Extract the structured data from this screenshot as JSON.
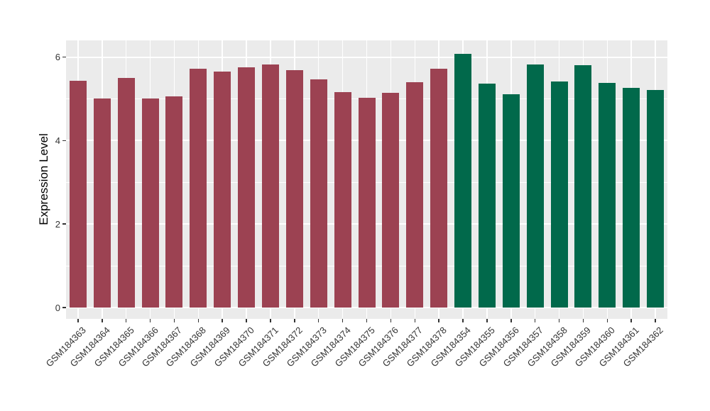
{
  "chart_data": {
    "type": "bar",
    "title": "",
    "xlabel": "",
    "ylabel": "Expression Level",
    "ylim": [
      0,
      6.4
    ],
    "yticks": [
      0,
      2,
      4,
      6
    ],
    "yticks_minor": [
      1,
      3,
      5
    ],
    "grid": "on",
    "legend": "none",
    "panel_background": "#EBEBEB",
    "gridline_color": "#FFFFFF",
    "categories": [
      "GSM184363",
      "GSM184364",
      "GSM184365",
      "GSM184366",
      "GSM184367",
      "GSM184368",
      "GSM184369",
      "GSM184370",
      "GSM184371",
      "GSM184372",
      "GSM184373",
      "GSM184374",
      "GSM184375",
      "GSM184376",
      "GSM184377",
      "GSM184378",
      "GSM184354",
      "GSM184355",
      "GSM184356",
      "GSM184357",
      "GSM184358",
      "GSM184359",
      "GSM184360",
      "GSM184361",
      "GSM184362"
    ],
    "values": [
      5.43,
      5.01,
      5.5,
      5.01,
      5.06,
      5.73,
      5.65,
      5.76,
      5.82,
      5.68,
      5.47,
      5.17,
      5.03,
      5.15,
      5.4,
      5.73,
      6.08,
      5.36,
      5.11,
      5.83,
      5.42,
      5.81,
      5.38,
      5.27,
      5.21
    ],
    "groups": [
      "A",
      "A",
      "A",
      "A",
      "A",
      "A",
      "A",
      "A",
      "A",
      "A",
      "A",
      "A",
      "A",
      "A",
      "A",
      "A",
      "B",
      "B",
      "B",
      "B",
      "B",
      "B",
      "B",
      "B",
      "B"
    ],
    "group_colors": {
      "A": "#9C4252",
      "B": "#01694B"
    }
  }
}
